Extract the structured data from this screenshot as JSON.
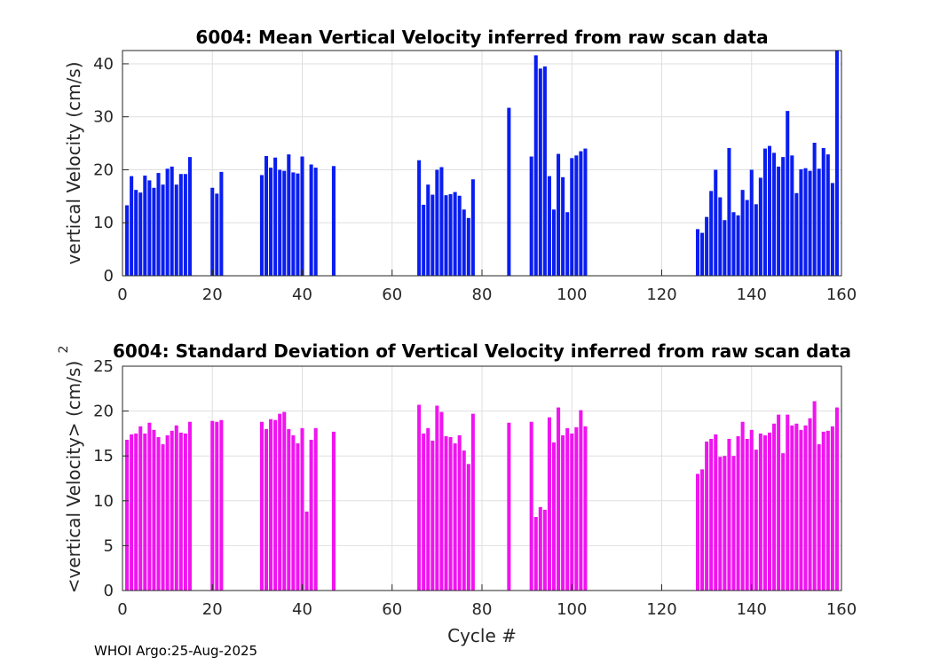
{
  "footer": "WHOI Argo:25-Aug-2025",
  "colors": {
    "top": "#0a1ef0",
    "bottom": "#f014f0"
  },
  "chart_data": [
    {
      "type": "bar",
      "title": "6004: Mean Vertical Velocity inferred from raw scan data",
      "xlabel": "",
      "ylabel": "vertical Velocity (cm/s)",
      "xlim": [
        0,
        160
      ],
      "ylim": [
        0,
        42.5
      ],
      "xticks": [
        0,
        20,
        40,
        60,
        80,
        100,
        120,
        140,
        160
      ],
      "yticks": [
        0,
        10,
        20,
        30,
        40
      ],
      "grid": true,
      "x": [
        1,
        2,
        3,
        4,
        5,
        6,
        7,
        8,
        9,
        10,
        11,
        12,
        13,
        14,
        15,
        20,
        21,
        22,
        31,
        32,
        33,
        34,
        35,
        36,
        37,
        38,
        39,
        40,
        42,
        43,
        47,
        66,
        67,
        68,
        69,
        70,
        71,
        72,
        73,
        74,
        75,
        76,
        77,
        78,
        86,
        91,
        92,
        93,
        94,
        95,
        96,
        97,
        98,
        99,
        100,
        101,
        102,
        103,
        128,
        129,
        130,
        131,
        132,
        133,
        134,
        135,
        136,
        137,
        138,
        139,
        140,
        141,
        142,
        143,
        144,
        145,
        146,
        147,
        148,
        149,
        150,
        151,
        152,
        153,
        154,
        155,
        156,
        157,
        158,
        159
      ],
      "values": [
        13.3,
        18.8,
        16.2,
        15.7,
        18.9,
        18.0,
        16.6,
        19.4,
        17.2,
        20.2,
        20.6,
        17.2,
        19.2,
        19.2,
        22.4,
        16.6,
        15.5,
        19.6,
        19.0,
        22.6,
        20.4,
        22.3,
        20.0,
        19.8,
        22.9,
        19.5,
        19.3,
        22.5,
        21.0,
        20.4,
        20.7,
        21.8,
        13.4,
        17.2,
        15.3,
        20.0,
        20.5,
        15.2,
        15.4,
        15.8,
        15.1,
        12.5,
        10.9,
        18.2,
        31.7,
        22.5,
        41.6,
        39.1,
        39.5,
        18.8,
        12.5,
        23.0,
        18.6,
        12.0,
        22.2,
        22.7,
        23.5,
        24.0,
        8.8,
        8.1,
        11.1,
        16.0,
        20.0,
        14.8,
        10.5,
        24.1,
        12.0,
        11.4,
        16.2,
        14.3,
        20.0,
        13.5,
        18.5,
        24.0,
        24.5,
        23.2,
        20.6,
        22.4,
        31.1,
        22.7,
        15.6,
        20.1,
        20.3,
        19.8,
        25.1,
        20.2,
        24.1,
        22.9,
        17.5,
        42.5
      ]
    },
    {
      "type": "bar",
      "title": "6004: Standard Deviation of Vertical Velocity inferred from raw scan data",
      "xlabel": "Cycle #",
      "ylabel": "<vertical Velocity> (cm/s)",
      "ylabel_exponent": "2",
      "xlim": [
        0,
        160
      ],
      "ylim": [
        0,
        25
      ],
      "xticks": [
        0,
        20,
        40,
        60,
        80,
        100,
        120,
        140,
        160
      ],
      "yticks": [
        0,
        5,
        10,
        15,
        20,
        25
      ],
      "grid": true,
      "x": [
        1,
        2,
        3,
        4,
        5,
        6,
        7,
        8,
        9,
        10,
        11,
        12,
        13,
        14,
        15,
        20,
        21,
        22,
        31,
        32,
        33,
        34,
        35,
        36,
        37,
        38,
        39,
        40,
        41,
        42,
        43,
        47,
        66,
        67,
        68,
        69,
        70,
        71,
        72,
        73,
        74,
        75,
        76,
        77,
        78,
        86,
        91,
        92,
        93,
        94,
        95,
        96,
        97,
        98,
        99,
        100,
        101,
        102,
        103,
        128,
        129,
        130,
        131,
        132,
        133,
        134,
        135,
        136,
        137,
        138,
        139,
        140,
        141,
        142,
        143,
        144,
        145,
        146,
        147,
        148,
        149,
        150,
        151,
        152,
        153,
        154,
        155,
        156,
        157,
        158,
        159
      ],
      "values": [
        16.8,
        17.4,
        17.5,
        18.3,
        17.5,
        18.7,
        17.9,
        17.1,
        16.3,
        17.3,
        17.8,
        18.4,
        17.6,
        17.5,
        18.8,
        18.9,
        18.8,
        19.0,
        18.8,
        18.0,
        19.1,
        19.0,
        19.7,
        19.9,
        18.0,
        17.3,
        16.4,
        18.1,
        8.8,
        16.8,
        18.1,
        17.7,
        20.7,
        17.5,
        18.1,
        16.7,
        20.6,
        19.9,
        17.2,
        17.1,
        16.4,
        17.3,
        15.6,
        14.1,
        19.7,
        18.7,
        18.8,
        8.2,
        9.3,
        9.0,
        19.3,
        16.5,
        20.4,
        17.3,
        18.1,
        17.5,
        18.2,
        20.1,
        18.3,
        13.0,
        13.5,
        16.6,
        16.9,
        17.4,
        14.9,
        15.0,
        16.9,
        15.0,
        17.2,
        18.8,
        16.9,
        17.9,
        15.7,
        17.5,
        17.3,
        17.6,
        18.6,
        19.6,
        15.3,
        19.6,
        18.4,
        18.6,
        17.9,
        18.4,
        19.2,
        21.1,
        16.3,
        17.7,
        17.8,
        18.3,
        20.4
      ]
    }
  ]
}
